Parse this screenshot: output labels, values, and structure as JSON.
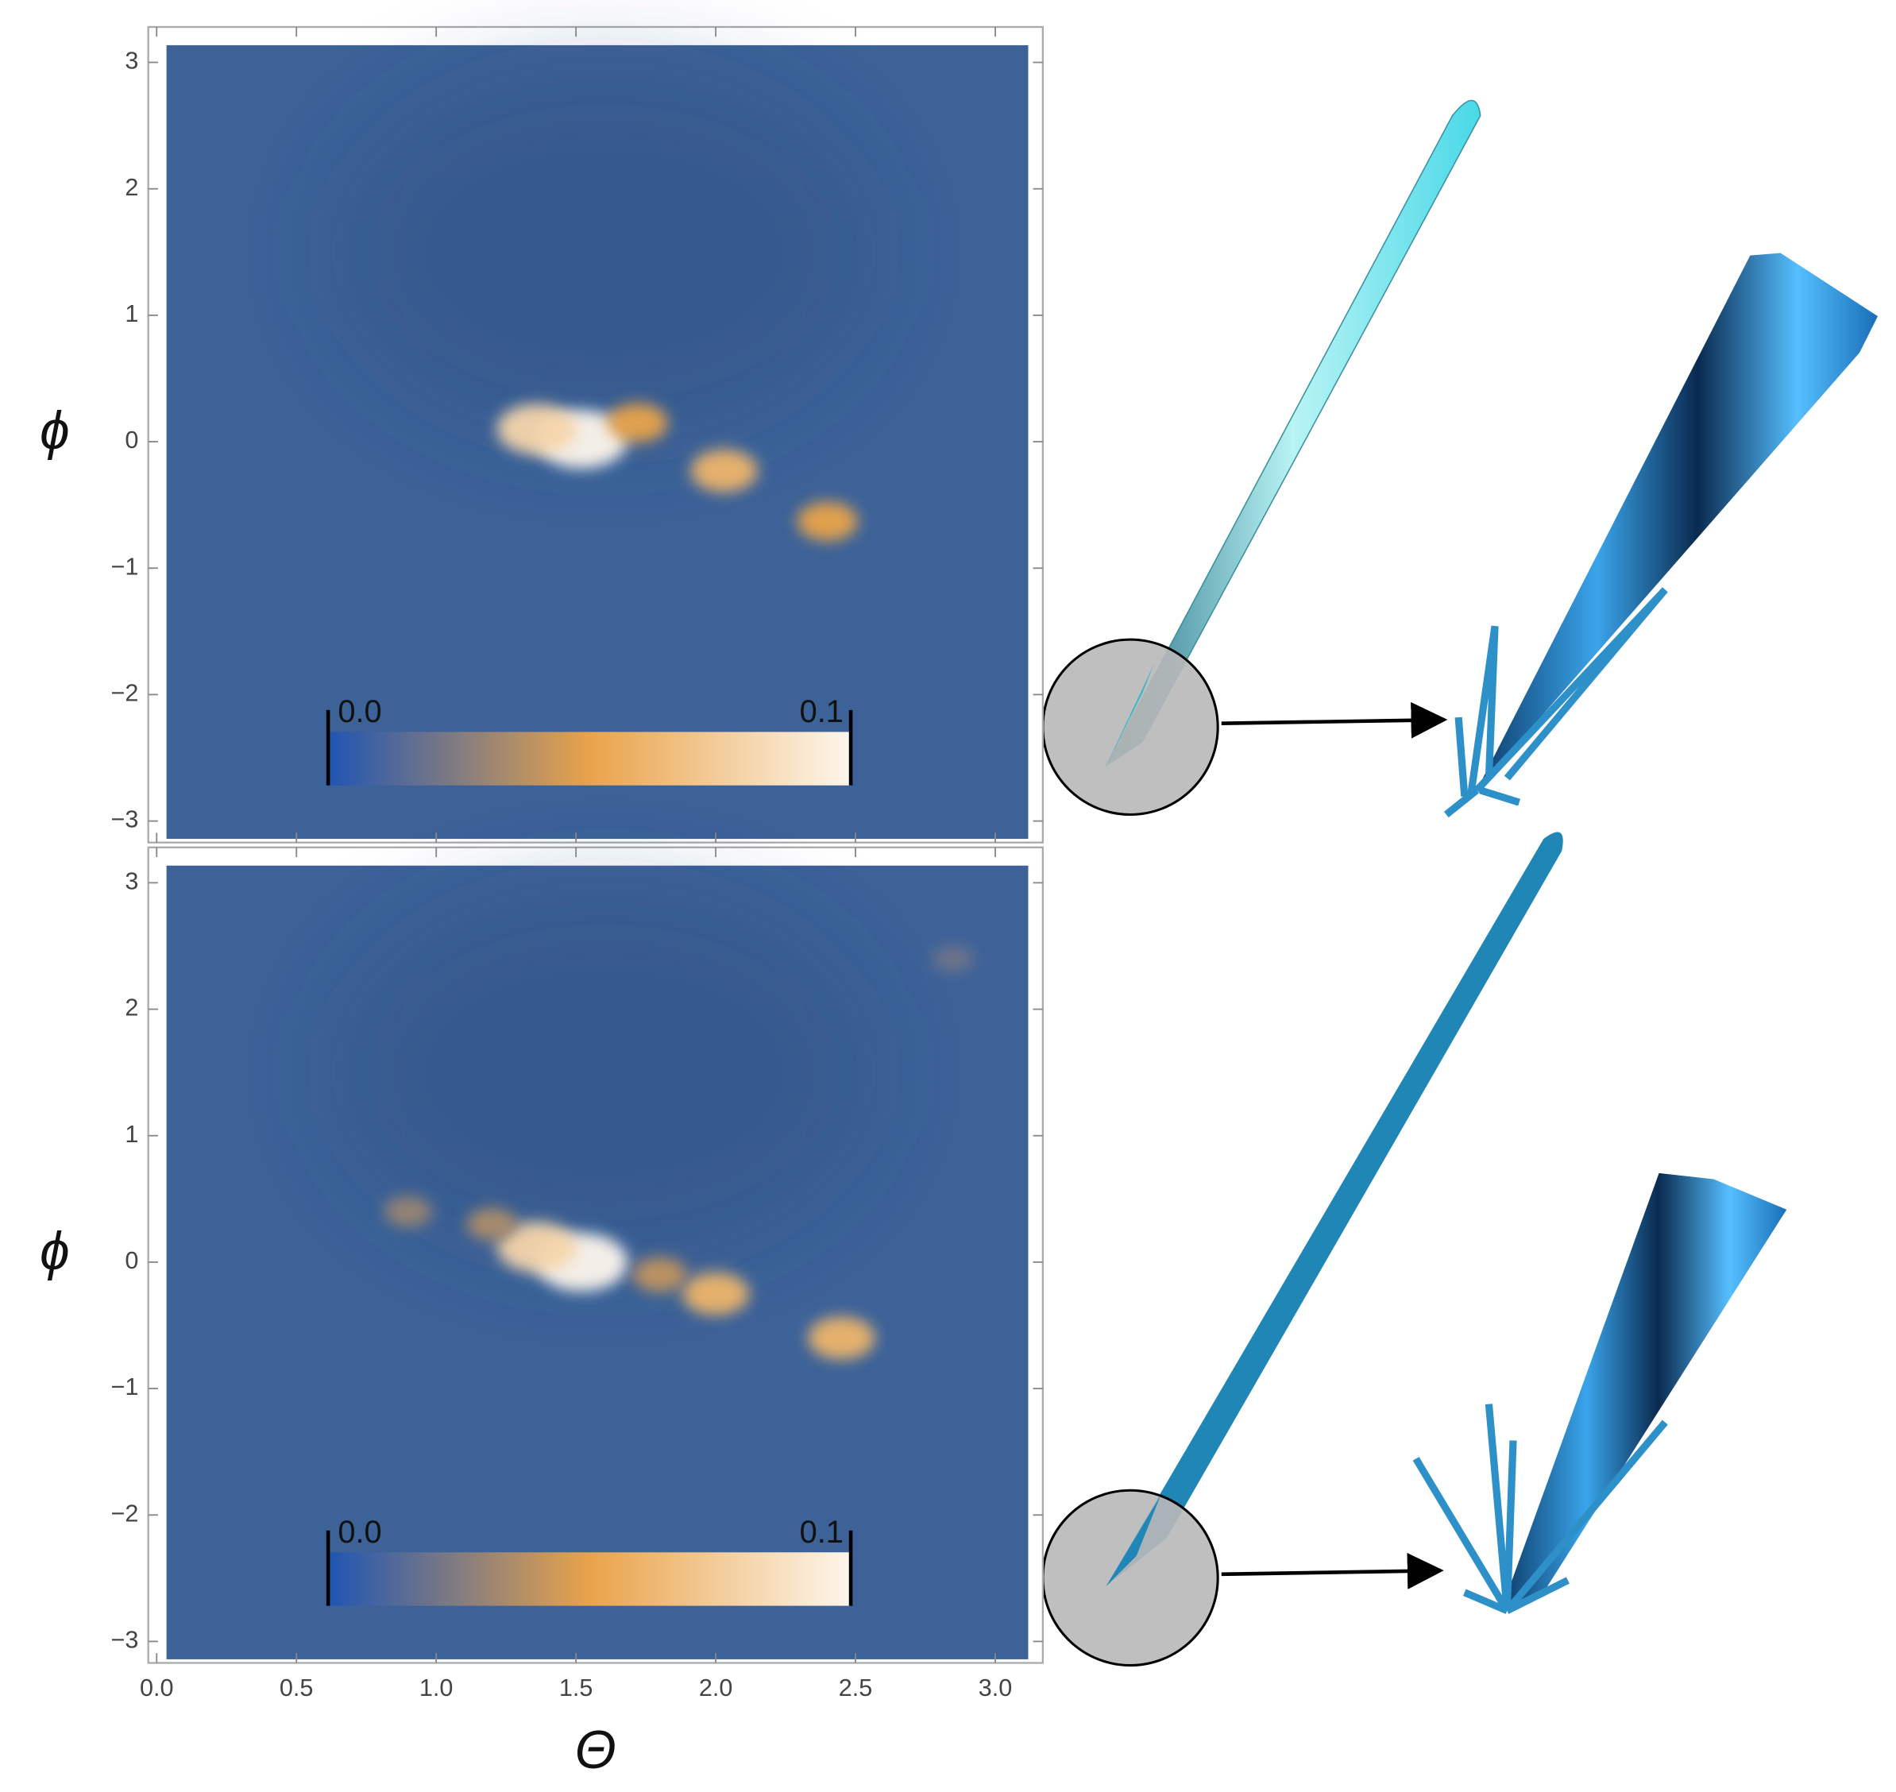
{
  "chart_data": [
    {
      "type": "heatmap",
      "ylabel": "ϕ",
      "xlim": [
        -0.03,
        3.17
      ],
      "ylim": [
        -3.17,
        3.28
      ],
      "yticks": [
        {
          "value": -3,
          "label": "−3"
        },
        {
          "value": -2,
          "label": "−2"
        },
        {
          "value": -1,
          "label": "−1"
        },
        0,
        1,
        2,
        3
      ],
      "background_color": "#3c6298",
      "colorscale": [
        "#1f55b4",
        "#e9a34a",
        "#fdf6ec"
      ],
      "points": {
        "x": [
          1.52,
          1.36,
          1.72,
          2.03,
          2.4
        ],
        "y": [
          0.02,
          0.1,
          0.15,
          -0.23,
          -0.63
        ],
        "values": [
          0.1,
          0.08,
          0.05,
          0.06,
          0.05
        ]
      },
      "colorbar": {
        "lim": [
          0,
          0.1
        ],
        "ticks": [
          {
            "value": 0,
            "label": "0.0"
          },
          0.1
        ]
      }
    },
    {
      "type": "heatmap",
      "ylabel": "ϕ",
      "xlabel": "Θ",
      "xlim": [
        -0.03,
        3.17
      ],
      "ylim": [
        -3.17,
        3.28
      ],
      "xticks": [
        {
          "value": 0,
          "label": "0.0"
        },
        0.5,
        {
          "value": 1,
          "label": "1.0"
        },
        1.5,
        {
          "value": 2,
          "label": "2.0"
        },
        2.5,
        {
          "value": 3,
          "label": "3.0"
        }
      ],
      "yticks": [
        {
          "value": -3,
          "label": "−3"
        },
        {
          "value": -2,
          "label": "−2"
        },
        {
          "value": -1,
          "label": "−1"
        },
        0,
        1,
        2,
        3
      ],
      "background_color": "#3c6298",
      "colorscale": [
        "#1f55b4",
        "#e9a34a",
        "#fdf6ec"
      ],
      "points": {
        "x": [
          1.52,
          1.36,
          2.0,
          2.45,
          0.9,
          1.2,
          1.8,
          2.85
        ],
        "y": [
          0.0,
          0.12,
          -0.25,
          -0.6,
          0.4,
          0.3,
          -0.1,
          2.4
        ],
        "values": [
          0.1,
          0.08,
          0.06,
          0.06,
          0.03,
          0.035,
          0.04,
          0.02
        ]
      },
      "colorbar": {
        "lim": [
          0,
          0.1
        ],
        "ticks": [
          {
            "value": 0,
            "label": "0.0"
          },
          0.1
        ]
      }
    }
  ]
}
